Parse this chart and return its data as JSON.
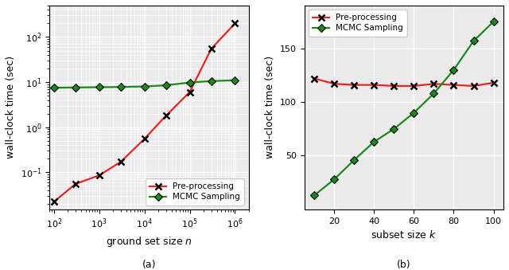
{
  "plot_a": {
    "preproc_x": [
      100,
      300,
      1000,
      3000,
      10000,
      30000,
      100000,
      300000,
      1000000
    ],
    "preproc_y": [
      0.022,
      0.055,
      0.085,
      0.17,
      0.55,
      1.8,
      6.0,
      55.0,
      200.0
    ],
    "mcmc_x": [
      100,
      300,
      1000,
      3000,
      10000,
      30000,
      100000,
      300000,
      1000000
    ],
    "mcmc_y": [
      7.5,
      7.6,
      7.7,
      7.8,
      8.0,
      8.5,
      9.8,
      10.5,
      11.0
    ],
    "xlabel": "ground set size $n$",
    "ylabel": "wall-clock time (sec)",
    "xlim_min": 80,
    "xlim_max": 2000000,
    "ylim_min": 0.015,
    "ylim_max": 500
  },
  "plot_b": {
    "preproc_x": [
      10,
      20,
      30,
      40,
      50,
      60,
      70,
      80,
      90,
      100
    ],
    "preproc_y": [
      122,
      117,
      116,
      116,
      115,
      115,
      117,
      116,
      115,
      118
    ],
    "mcmc_x": [
      10,
      20,
      30,
      40,
      50,
      60,
      70,
      80,
      90,
      100
    ],
    "mcmc_y": [
      13,
      28,
      46,
      63,
      75,
      90,
      108,
      130,
      157,
      175
    ],
    "xlabel": "subset size $k$",
    "ylabel": "wall-clock time (sec)",
    "xlim_min": 5,
    "xlim_max": 105,
    "ylim_min": 0,
    "ylim_max": 190,
    "xticks": [
      20,
      40,
      60,
      80,
      100
    ],
    "yticks": [
      50,
      100,
      150
    ]
  },
  "legend_preproc": "Pre-processing",
  "legend_mcmc": "MCMC Sampling",
  "preproc_color": "#ee2222",
  "mcmc_color": "#1a8a1a",
  "bg_color": "#ebebeb",
  "caption_a": "(a)",
  "caption_b": "(b)"
}
